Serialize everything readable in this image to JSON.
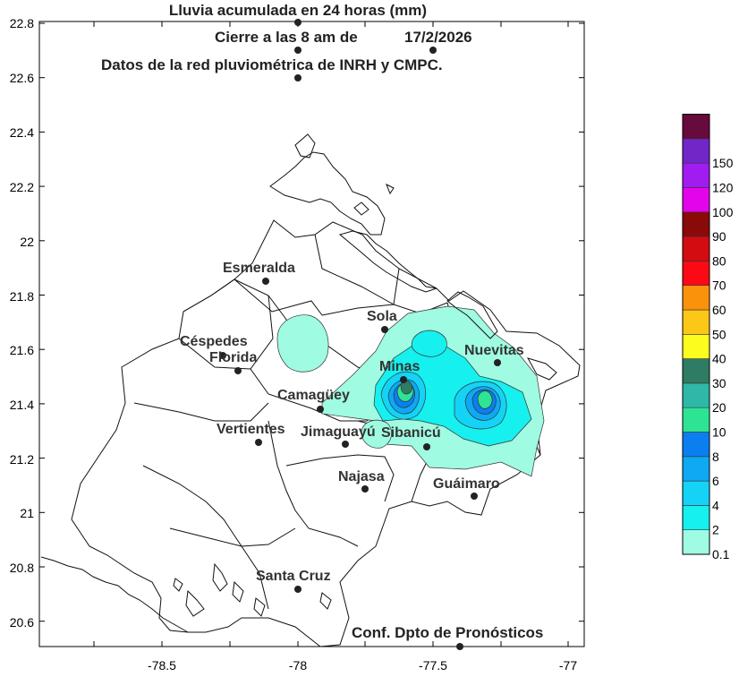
{
  "titles": {
    "line1": "Lluvia acumulada en 24 horas (mm)",
    "line2_prefix": "Cierre a las 8 am de",
    "line2_date": "17/2/2026",
    "line3": "Datos de la red pluviométrica de INRH  y CMPC.",
    "credit": "Conf. Dpto de Pronósticos"
  },
  "axes": {
    "x_ticks": [
      "-78.5",
      "-78",
      "-77.5",
      "-77"
    ],
    "y_ticks": [
      "22.8",
      "22.6",
      "22.4",
      "22.2",
      "22",
      "21.8",
      "21.6",
      "21.4",
      "21.2",
      "21",
      "20.8",
      "20.6"
    ]
  },
  "places": [
    {
      "name": "Esmeralda"
    },
    {
      "name": "Sola"
    },
    {
      "name": "Céspedes"
    },
    {
      "name": "Florida"
    },
    {
      "name": "Nuevitas"
    },
    {
      "name": "Minas"
    },
    {
      "name": "Camagüey"
    },
    {
      "name": "Vertientes"
    },
    {
      "name": "Jimaguayú"
    },
    {
      "name": "Sibanicú"
    },
    {
      "name": "Najasa"
    },
    {
      "name": "Guáimaro"
    },
    {
      "name": "Santa Cruz"
    }
  ],
  "legend": {
    "levels": [
      {
        "label": "0.1",
        "color": "#9ffbe2"
      },
      {
        "label": "2",
        "color": "#16f0ee"
      },
      {
        "label": "4",
        "color": "#14d3f7"
      },
      {
        "label": "6",
        "color": "#0ea8f3"
      },
      {
        "label": "8",
        "color": "#0b7ff0"
      },
      {
        "label": "10",
        "color": "#2de495"
      },
      {
        "label": "20",
        "color": "#2fb7a8"
      },
      {
        "label": "30",
        "color": "#2e7c63"
      },
      {
        "label": "40",
        "color": "#fcfc1e"
      },
      {
        "label": "50",
        "color": "#fcc716"
      },
      {
        "label": "60",
        "color": "#fb920c"
      },
      {
        "label": "70",
        "color": "#fb0a16"
      },
      {
        "label": "80",
        "color": "#d20c10"
      },
      {
        "label": "90",
        "color": "#8a0a0a"
      },
      {
        "label": "100",
        "color": "#e404ec"
      },
      {
        "label": "120",
        "color": "#a01cf0"
      },
      {
        "label": "150",
        "color": "#7326c8"
      }
    ],
    "top_color": "#670a3d"
  }
}
